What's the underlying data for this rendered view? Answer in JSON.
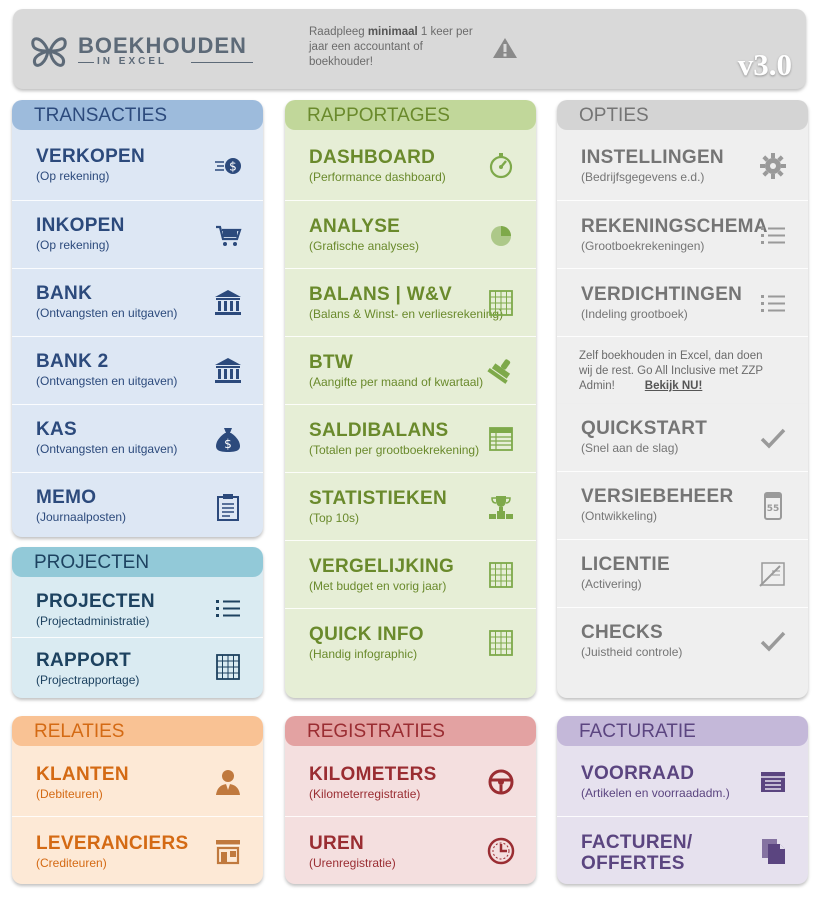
{
  "header": {
    "logo_main": "BOEKHOUDEN",
    "logo_sub": "IN EXCEL",
    "note_pre": "Raadpleeg ",
    "note_bold": "minimaal",
    "note_post": " 1 keer per jaar een accountant of boekhouder!",
    "version": "v3.0"
  },
  "transacties": {
    "title": "TRANSACTIES",
    "items": [
      {
        "title": "VERKOPEN",
        "sub": "(Op rekening)",
        "icon": "money-icon"
      },
      {
        "title": "INKOPEN",
        "sub": "(Op rekening)",
        "icon": "cart-icon"
      },
      {
        "title": "BANK",
        "sub": "(Ontvangsten en uitgaven)",
        "icon": "bank-icon"
      },
      {
        "title": "BANK 2",
        "sub": "(Ontvangsten en uitgaven)",
        "icon": "bank-icon"
      },
      {
        "title": "KAS",
        "sub": "(Ontvangsten en uitgaven)",
        "icon": "moneybag-icon"
      },
      {
        "title": "MEMO",
        "sub": "(Journaalposten)",
        "icon": "clipboard-icon"
      }
    ]
  },
  "projecten": {
    "title": "PROJECTEN",
    "items": [
      {
        "title": "PROJECTEN",
        "sub": "(Projectadministratie)",
        "icon": "list-icon"
      },
      {
        "title": "RAPPORT",
        "sub": "(Projectrapportage)",
        "icon": "grid-icon"
      }
    ]
  },
  "rapportages": {
    "title": "RAPPORTAGES",
    "items": [
      {
        "title": "DASHBOARD",
        "sub": "(Performance dashboard)",
        "icon": "compass-icon"
      },
      {
        "title": "ANALYSE",
        "sub": "(Grafische analyses)",
        "icon": "pie-chart-icon"
      },
      {
        "title": "BALANS | W&V",
        "sub": "(Balans & Winst- en verliesrekening)",
        "icon": "grid-icon"
      },
      {
        "title": "BTW",
        "sub": "(Aangifte per maand of kwartaal)",
        "icon": "stamp-icon"
      },
      {
        "title": "SALDIBALANS",
        "sub": "(Totalen per grootboekrekening)",
        "icon": "table-icon"
      },
      {
        "title": "STATISTIEKEN",
        "sub": "(Top 10s)",
        "icon": "trophy-icon"
      },
      {
        "title": "VERGELIJKING",
        "sub": "(Met budget en vorig jaar)",
        "icon": "grid-icon"
      },
      {
        "title": "QUICK INFO",
        "sub": "(Handig infographic)",
        "icon": "grid-icon"
      }
    ]
  },
  "opties": {
    "title": "OPTIES",
    "items": [
      {
        "title": "INSTELLINGEN",
        "sub": "(Bedrijfsgegevens e.d.)",
        "icon": "gear-icon"
      },
      {
        "title": "REKENINGSCHEMA",
        "sub": "(Grootboekrekeningen)",
        "icon": "list-icon"
      },
      {
        "title": "VERDICHTINGEN",
        "sub": "(Indeling grootboek)",
        "icon": "list-icon"
      }
    ],
    "promo_text": "Zelf boekhouden in Excel, dan doen wij de rest. Go All Inclusive met ZZP Admin!",
    "promo_link": "Bekijk NU!",
    "items2": [
      {
        "title": "QUICKSTART",
        "sub": "(Snel aan de slag)",
        "icon": "checkmark-icon"
      },
      {
        "title": "VERSIEBEHEER",
        "sub": "(Ontwikkeling)",
        "icon": "calendar-icon"
      },
      {
        "title": "LICENTIE",
        "sub": "(Activering)",
        "icon": "license-icon"
      },
      {
        "title": "CHECKS",
        "sub": "(Juistheid controle)",
        "icon": "checkmark-icon"
      }
    ],
    "calendar_day": "55"
  },
  "relaties": {
    "title": "RELATIES",
    "items": [
      {
        "title": "KLANTEN",
        "sub": "(Debiteuren)",
        "icon": "person-icon"
      },
      {
        "title": "LEVERANCIERS",
        "sub": "(Crediteuren)",
        "icon": "store-icon"
      }
    ]
  },
  "registraties": {
    "title": "REGISTRATIES",
    "items": [
      {
        "title": "KILOMETERS",
        "sub": "(Kilometerregistratie)",
        "icon": "steering-wheel-icon"
      },
      {
        "title": "UREN",
        "sub": "(Urenregistratie)",
        "icon": "clock-icon"
      }
    ]
  },
  "facturatie": {
    "title": "FACTURATIE",
    "items": [
      {
        "title": "VOORRAAD",
        "sub": "(Artikelen en voorraadadm.)",
        "icon": "box-icon"
      },
      {
        "title": "FACTUREN/",
        "title2": "OFFERTES",
        "icon": "documents-icon"
      }
    ]
  },
  "colors": {
    "blue_bg": "#dde7f4",
    "blue_head": "#9dbbdc",
    "blue_text": "#2c4a7c",
    "teal_bg": "#daebf2",
    "teal_head": "#92c9d8",
    "teal_text": "#1d4260",
    "green_bg": "#e6eed6",
    "green_head": "#c1d79a",
    "green_text": "#6a8a2c",
    "grey_bg": "#efefef",
    "grey_head": "#d4d4d4",
    "grey_text": "#757575",
    "orange_bg": "#fde9d6",
    "orange_head": "#f9c294",
    "orange_text": "#d46a14",
    "red_bg": "#f4dfdf",
    "red_head": "#e3a2a2",
    "red_text": "#9a2d32",
    "purple_bg": "#e6e1ee",
    "purple_head": "#c4b8d9",
    "purple_text": "#5b4580"
  }
}
